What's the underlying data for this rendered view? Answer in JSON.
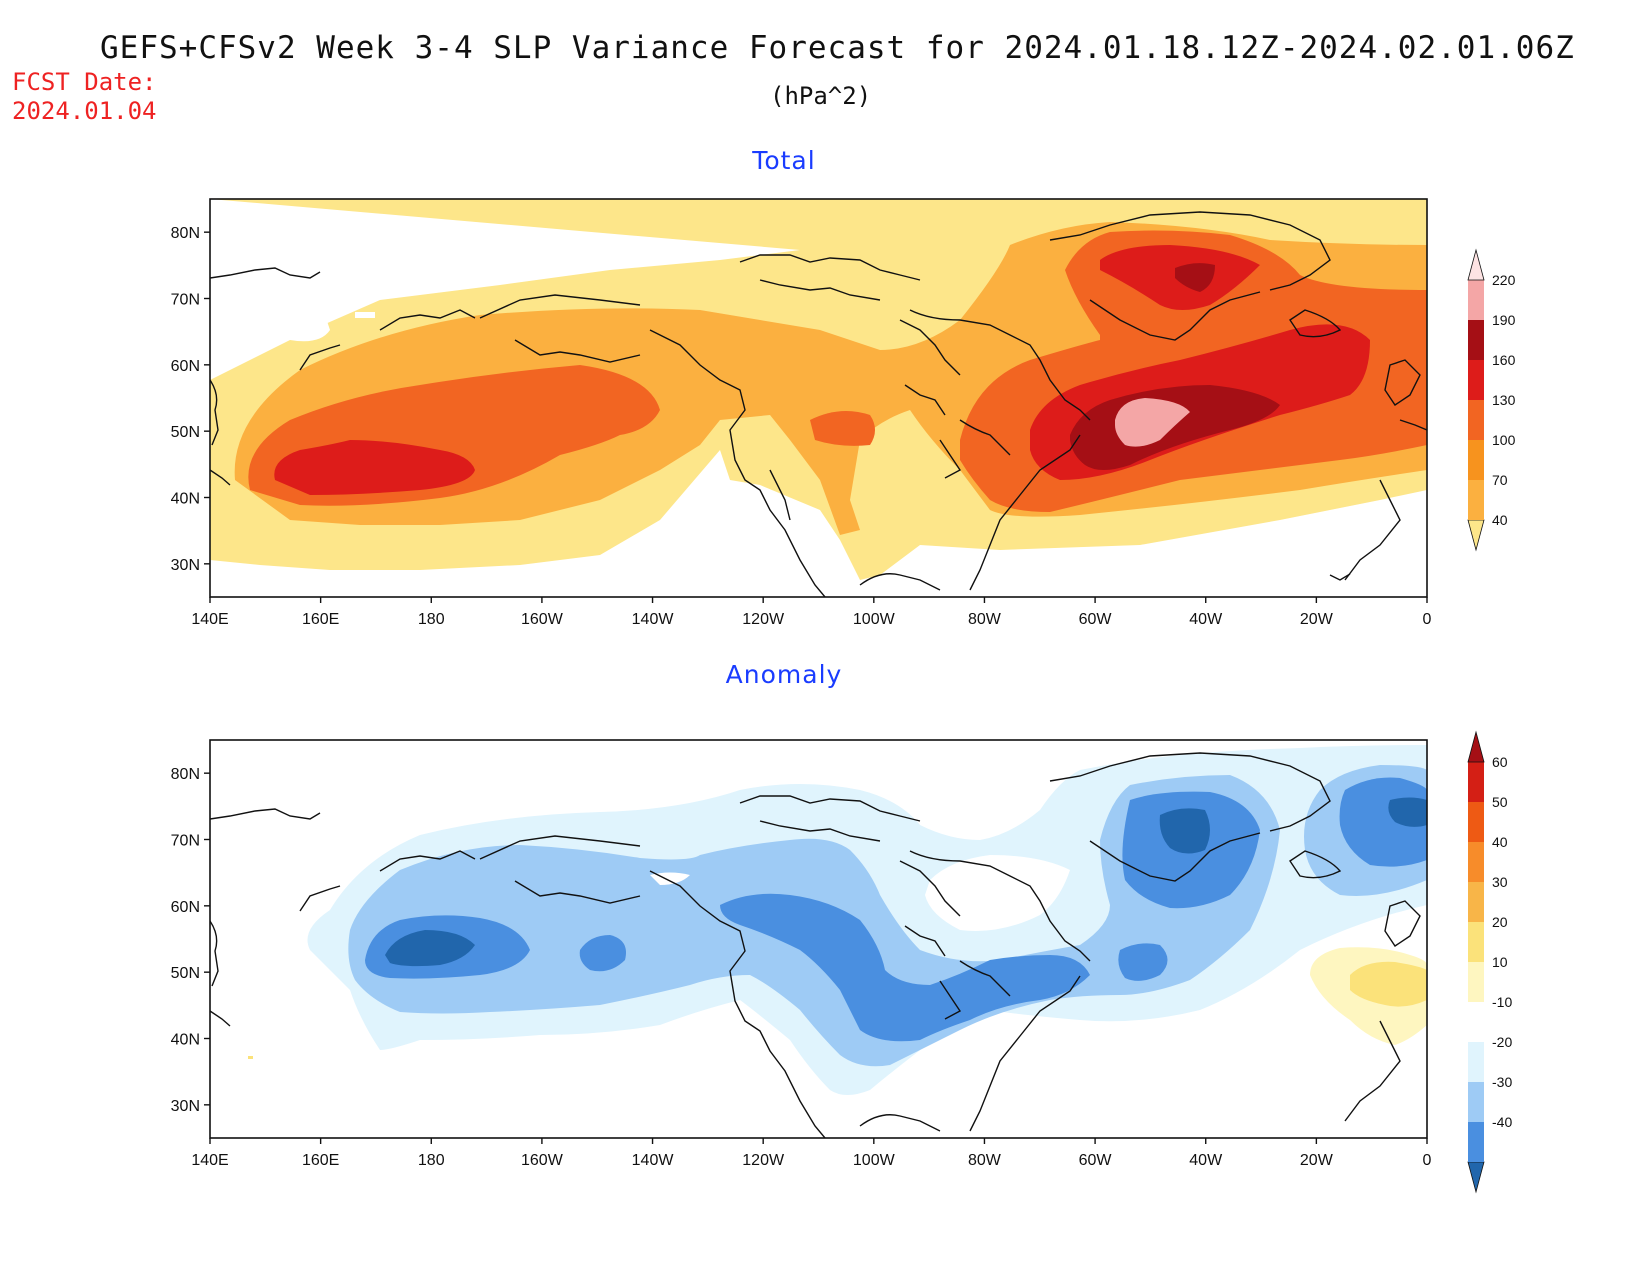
{
  "header": {
    "title": "GEFS+CFSv2 Week 3-4 SLP Variance Forecast for 2024.01.18.12Z-2024.02.01.06Z",
    "units": "(hPa^2)",
    "fcst_label": "FCST Date:",
    "fcst_date": "2024.01.04"
  },
  "panels": [
    {
      "title": "Total",
      "colorbar": {
        "levels": [
          "40",
          "70",
          "100",
          "130",
          "160",
          "190",
          "220"
        ],
        "colors": [
          "#fde68a",
          "#fbb040",
          "#f7931e",
          "#f26522",
          "#dd1c1a",
          "#a50f15",
          "#f4a6a6",
          "#fde3e3"
        ]
      }
    },
    {
      "title": "Anomaly",
      "colorbar": {
        "levels": [
          "60",
          "50",
          "40",
          "30",
          "20",
          "10",
          "-10",
          "-20",
          "-30",
          "-40"
        ],
        "colors": [
          "#2166ac",
          "#4a8fe0",
          "#9ecbf5",
          "#e0f4fd",
          "#ffffff",
          "#fef6c0",
          "#fbe27a",
          "#f8b548",
          "#f78c2a",
          "#ee5a14",
          "#d41f15",
          "#a50f15"
        ]
      }
    }
  ],
  "axes": {
    "lon_labels": [
      "140E",
      "160E",
      "180",
      "160W",
      "140W",
      "120W",
      "100W",
      "80W",
      "60W",
      "40W",
      "20W",
      "0"
    ],
    "lat_labels": [
      "80N",
      "70N",
      "60N",
      "50N",
      "40N",
      "30N"
    ]
  }
}
